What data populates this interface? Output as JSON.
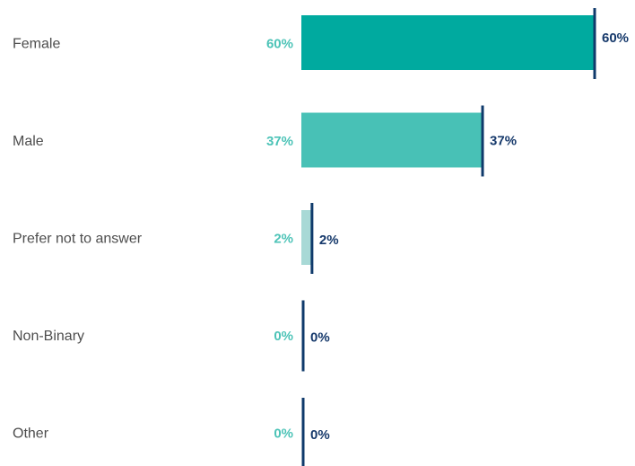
{
  "chart_data": {
    "type": "bar",
    "orientation": "horizontal",
    "categories": [
      "Female",
      "Male",
      "Prefer not to answer",
      "Non-Binary",
      "Other"
    ],
    "values": [
      60,
      37,
      2,
      0,
      0
    ],
    "value_labels_left": [
      "60%",
      "37%",
      "2%",
      "0%",
      "0%"
    ],
    "value_labels_right": [
      "60%",
      "37%",
      "2%",
      "0%",
      "0%"
    ],
    "marker_values": [
      60,
      37,
      2,
      0,
      0
    ],
    "bar_colors": [
      "#00aa9f",
      "#48c1b6",
      "#a8d9d6",
      "#c8e8e5",
      "#c8e8e5"
    ],
    "marker_color": "#0f3a6b",
    "left_label_color": "#4cc3b7",
    "right_label_color": "#16396b",
    "xlim": [
      0,
      60
    ],
    "title": "",
    "xlabel": "",
    "ylabel": "",
    "grid": false,
    "legend": "none"
  }
}
